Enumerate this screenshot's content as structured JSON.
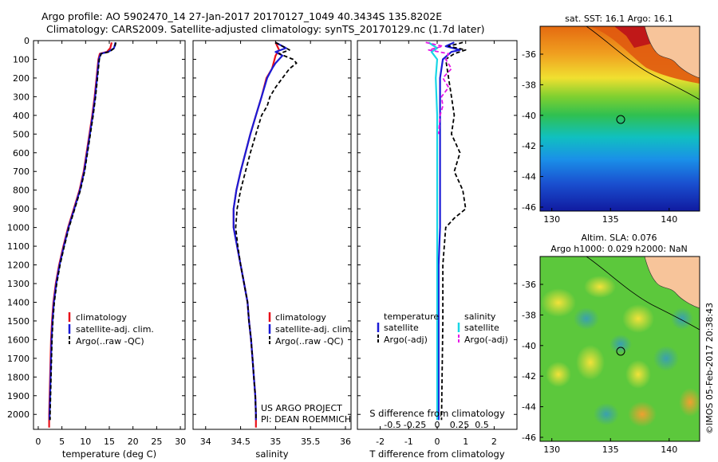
{
  "header": {
    "line1": "Argo profile: AO 5902470_14 27-Jan-2017 20170127_1049 40.3434S 135.8202E",
    "line2": "Climatology: CARS2009. Satellite-adjusted climatology: synTS_20170129.nc (1.7d later)"
  },
  "colors": {
    "climatology": "#e8101a",
    "satellite": "#1b1bd6",
    "argo": "#000000",
    "sal_sat": "#19d6e6",
    "sal_argo": "#e615e6",
    "land": "#f7c49a"
  },
  "panels": {
    "temperature": {
      "xlabel": "temperature (deg C)",
      "xticks": [
        "0",
        "5",
        "10",
        "15",
        "20",
        "25",
        "30"
      ],
      "legend": [
        "climatology",
        "satellite-adj. clim.",
        "Argo(..raw -QC)"
      ]
    },
    "salinity": {
      "xlabel": "salinity",
      "xticks": [
        "34",
        "34.5",
        "35",
        "35.5",
        "36"
      ],
      "legend": [
        "climatology",
        "satellite-adj. clim.",
        "Argo(..raw -QC)"
      ],
      "credit1": "US ARGO PROJECT",
      "credit2": "PI: DEAN ROEMMICH"
    },
    "difference": {
      "title_s": "S difference from climatology",
      "xlabel": "T difference from climatology",
      "sticks": [
        "-0.5",
        "-0.25",
        "0",
        "0.25",
        "0.5"
      ],
      "tticks": [
        "-2",
        "-1",
        "0",
        "1",
        "2"
      ],
      "leg_t_title": "temperature",
      "leg_t": [
        "satellite",
        "Argo(-adj)"
      ],
      "leg_s_title": "salinity",
      "leg_s": [
        "satellite",
        "Argo(-adj)"
      ]
    },
    "depth_ticks": [
      "0",
      "100",
      "200",
      "300",
      "400",
      "500",
      "600",
      "700",
      "800",
      "900",
      "1000",
      "1100",
      "1200",
      "1300",
      "1400",
      "1500",
      "1600",
      "1700",
      "1800",
      "1900",
      "2000"
    ]
  },
  "maps": {
    "sst_title": "sat. SST: 16.1  Argo: 16.1",
    "sla_title1": "Altim. SLA: 0.076",
    "sla_title2": "Argo h1000: 0.029 h2000: NaN",
    "lat_ticks": [
      "-36",
      "-38",
      "-40",
      "-42",
      "-44",
      "-46"
    ],
    "lon_ticks": [
      "130",
      "135",
      "140"
    ],
    "side_text": "©IMOS 05-Feb-2017 20:38:43"
  },
  "chart_data": [
    {
      "type": "line",
      "title": "",
      "xlabel": "temperature (deg C)",
      "ylabel": "",
      "xlim": [
        -1,
        31
      ],
      "ylim": [
        2080,
        0
      ],
      "y_units": "dbar",
      "series": [
        {
          "name": "climatology",
          "points": [
            [
              15.5,
              10
            ],
            [
              15.2,
              40
            ],
            [
              14.5,
              60
            ],
            [
              13.0,
              70
            ],
            [
              12.7,
              100
            ],
            [
              12.3,
              200
            ],
            [
              11.9,
              300
            ],
            [
              11.4,
              400
            ],
            [
              10.8,
              500
            ],
            [
              10.2,
              600
            ],
            [
              9.6,
              700
            ],
            [
              8.7,
              800
            ],
            [
              7.5,
              900
            ],
            [
              6.3,
              1000
            ],
            [
              5.3,
              1100
            ],
            [
              4.4,
              1200
            ],
            [
              3.7,
              1300
            ],
            [
              3.2,
              1400
            ],
            [
              2.9,
              1500
            ],
            [
              2.7,
              1600
            ],
            [
              2.6,
              1700
            ],
            [
              2.5,
              1800
            ],
            [
              2.4,
              1900
            ],
            [
              2.3,
              2000
            ],
            [
              2.3,
              2070
            ]
          ]
        },
        {
          "name": "satellite-adj. clim.",
          "points": [
            [
              16.3,
              10
            ],
            [
              16.0,
              40
            ],
            [
              14.8,
              60
            ],
            [
              13.2,
              70
            ],
            [
              12.8,
              100
            ],
            [
              12.4,
              200
            ],
            [
              12.0,
              300
            ],
            [
              11.5,
              400
            ],
            [
              10.9,
              500
            ],
            [
              10.3,
              600
            ],
            [
              9.7,
              700
            ],
            [
              8.8,
              800
            ],
            [
              7.6,
              900
            ],
            [
              6.4,
              1000
            ],
            [
              5.4,
              1100
            ],
            [
              4.5,
              1200
            ],
            [
              3.8,
              1300
            ],
            [
              3.3,
              1400
            ],
            [
              3.0,
              1500
            ],
            [
              2.8,
              1600
            ],
            [
              2.7,
              1700
            ],
            [
              2.6,
              1800
            ],
            [
              2.5,
              1900
            ],
            [
              2.4,
              2000
            ],
            [
              2.4,
              2030
            ]
          ]
        },
        {
          "name": "Argo(..raw -QC)",
          "points": [
            [
              16.4,
              10
            ],
            [
              16.1,
              40
            ],
            [
              15.0,
              60
            ],
            [
              13.3,
              70
            ],
            [
              12.9,
              100
            ],
            [
              12.5,
              200
            ],
            [
              12.1,
              300
            ],
            [
              11.6,
              400
            ],
            [
              11.0,
              500
            ],
            [
              10.4,
              600
            ],
            [
              9.8,
              700
            ],
            [
              8.9,
              800
            ],
            [
              7.7,
              900
            ],
            [
              6.5,
              1000
            ],
            [
              5.5,
              1100
            ],
            [
              4.6,
              1200
            ],
            [
              3.9,
              1300
            ],
            [
              3.4,
              1400
            ],
            [
              3.1,
              1500
            ],
            [
              2.9,
              1600
            ],
            [
              2.8,
              1700
            ],
            [
              2.7,
              1800
            ],
            [
              2.6,
              1900
            ],
            [
              2.5,
              2000
            ],
            [
              2.5,
              2030
            ]
          ]
        }
      ]
    },
    {
      "type": "line",
      "title": "",
      "xlabel": "salinity",
      "ylabel": "",
      "xlim": [
        33.82,
        36.08
      ],
      "ylim": [
        2080,
        0
      ],
      "series": [
        {
          "name": "climatology",
          "points": [
            [
              35.0,
              10
            ],
            [
              35.05,
              50
            ],
            [
              35.0,
              80
            ],
            [
              34.95,
              150
            ],
            [
              34.87,
              200
            ],
            [
              34.8,
              300
            ],
            [
              34.72,
              400
            ],
            [
              34.64,
              500
            ],
            [
              34.57,
              600
            ],
            [
              34.5,
              700
            ],
            [
              34.44,
              800
            ],
            [
              34.4,
              900
            ],
            [
              34.4,
              1000
            ],
            [
              34.45,
              1100
            ],
            [
              34.5,
              1200
            ],
            [
              34.55,
              1300
            ],
            [
              34.6,
              1400
            ],
            [
              34.62,
              1500
            ],
            [
              34.65,
              1600
            ],
            [
              34.67,
              1700
            ],
            [
              34.69,
              1800
            ],
            [
              34.71,
              1900
            ],
            [
              34.72,
              2000
            ],
            [
              34.72,
              2070
            ]
          ]
        },
        {
          "name": "satellite-adj. clim.",
          "points": [
            [
              35.0,
              10
            ],
            [
              35.15,
              40
            ],
            [
              35.0,
              60
            ],
            [
              35.1,
              80
            ],
            [
              35.0,
              120
            ],
            [
              34.95,
              150
            ],
            [
              34.88,
              200
            ],
            [
              34.8,
              300
            ],
            [
              34.72,
              400
            ],
            [
              34.64,
              500
            ],
            [
              34.57,
              600
            ],
            [
              34.5,
              700
            ],
            [
              34.44,
              800
            ],
            [
              34.4,
              900
            ],
            [
              34.4,
              1000
            ],
            [
              34.45,
              1100
            ],
            [
              34.5,
              1200
            ],
            [
              34.55,
              1300
            ],
            [
              34.6,
              1400
            ],
            [
              34.62,
              1500
            ],
            [
              34.65,
              1600
            ],
            [
              34.67,
              1700
            ],
            [
              34.69,
              1800
            ],
            [
              34.71,
              1900
            ],
            [
              34.72,
              2000
            ],
            [
              34.72,
              2030
            ]
          ]
        },
        {
          "name": "Argo(..raw -QC)",
          "points": [
            [
              35.0,
              10
            ],
            [
              35.1,
              30
            ],
            [
              35.2,
              50
            ],
            [
              35.05,
              70
            ],
            [
              35.25,
              100
            ],
            [
              35.3,
              120
            ],
            [
              35.2,
              150
            ],
            [
              35.1,
              200
            ],
            [
              35.0,
              250
            ],
            [
              34.92,
              300
            ],
            [
              34.88,
              350
            ],
            [
              34.8,
              400
            ],
            [
              34.72,
              500
            ],
            [
              34.64,
              600
            ],
            [
              34.57,
              700
            ],
            [
              34.5,
              800
            ],
            [
              34.45,
              900
            ],
            [
              34.43,
              1000
            ],
            [
              34.46,
              1100
            ],
            [
              34.5,
              1200
            ],
            [
              34.55,
              1300
            ],
            [
              34.6,
              1400
            ],
            [
              34.62,
              1500
            ],
            [
              34.65,
              1600
            ],
            [
              34.67,
              1700
            ],
            [
              34.69,
              1800
            ],
            [
              34.71,
              1900
            ],
            [
              34.72,
              2000
            ],
            [
              34.72,
              2030
            ]
          ]
        }
      ]
    },
    {
      "type": "line",
      "title": "S difference from climatology",
      "xlabel": "T difference from climatology",
      "ylabel": "",
      "xlim": [
        -2.8,
        2.8
      ],
      "ylim": [
        2080,
        0
      ],
      "series": [
        {
          "name": "temperature satellite",
          "points": [
            [
              0.6,
              10
            ],
            [
              0.3,
              30
            ],
            [
              0.8,
              50
            ],
            [
              0.5,
              60
            ],
            [
              0.2,
              100
            ],
            [
              0.1,
              200
            ],
            [
              0.1,
              400
            ],
            [
              0.1,
              600
            ],
            [
              0.1,
              800
            ],
            [
              0.1,
              1000
            ],
            [
              0.05,
              1200
            ],
            [
              0.05,
              1500
            ],
            [
              0.05,
              2030
            ]
          ]
        },
        {
          "name": "temperature Argo(-adj)",
          "points": [
            [
              0.9,
              10
            ],
            [
              0.4,
              30
            ],
            [
              1.0,
              50
            ],
            [
              0.6,
              70
            ],
            [
              0.3,
              100
            ],
            [
              0.4,
              200
            ],
            [
              0.5,
              300
            ],
            [
              0.6,
              400
            ],
            [
              0.5,
              500
            ],
            [
              0.8,
              600
            ],
            [
              0.6,
              700
            ],
            [
              0.9,
              800
            ],
            [
              1.0,
              900
            ],
            [
              0.6,
              950
            ],
            [
              0.3,
              1000
            ],
            [
              0.2,
              1200
            ],
            [
              0.2,
              1500
            ],
            [
              0.15,
              2030
            ]
          ]
        },
        {
          "name": "salinity satellite",
          "points": [
            [
              -0.3,
              10
            ],
            [
              0.0,
              40
            ],
            [
              -0.2,
              60
            ],
            [
              0.0,
              100
            ],
            [
              -0.05,
              200
            ],
            [
              0.0,
              400
            ],
            [
              0.0,
              800
            ],
            [
              0.0,
              1200
            ],
            [
              0.0,
              2030
            ]
          ]
        },
        {
          "name": "salinity Argo(-adj)",
          "points": [
            [
              -0.4,
              10
            ],
            [
              0.2,
              30
            ],
            [
              -0.3,
              50
            ],
            [
              0.4,
              70
            ],
            [
              0.3,
              100
            ],
            [
              0.5,
              150
            ],
            [
              0.2,
              200
            ],
            [
              0.4,
              250
            ],
            [
              0.15,
              300
            ],
            [
              0.2,
              350
            ],
            [
              0.1,
              400
            ],
            [
              0.05,
              500
            ]
          ]
        }
      ]
    }
  ]
}
